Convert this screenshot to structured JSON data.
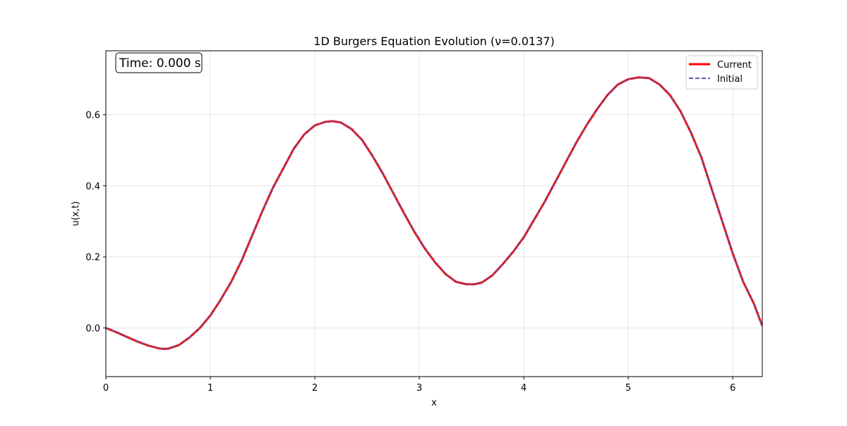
{
  "chart_data": {
    "type": "line",
    "title": "1D Burgers Equation Evolution (ν=0.0137)",
    "xlabel": "x",
    "ylabel": "u(x,t)",
    "xlim": [
      0,
      6.2832
    ],
    "ylim": [
      -0.137,
      0.78
    ],
    "grid": true,
    "legend_position": "top-right",
    "annotation": "Time: 0.000 s",
    "x_ticks": [
      0,
      1,
      2,
      3,
      4,
      5,
      6
    ],
    "x_tick_labels": [
      "0",
      "1",
      "2",
      "3",
      "4",
      "5",
      "6"
    ],
    "y_ticks": [
      0.0,
      0.2,
      0.4,
      0.6
    ],
    "y_tick_labels": [
      "0.0",
      "0.2",
      "0.4",
      "0.6"
    ],
    "x": [
      0,
      0.1,
      0.2,
      0.3,
      0.4,
      0.5,
      0.55,
      0.6,
      0.7,
      0.8,
      0.9,
      1.0,
      1.1,
      1.2,
      1.3,
      1.4,
      1.5,
      1.6,
      1.7,
      1.8,
      1.9,
      2.0,
      2.1,
      2.17,
      2.25,
      2.35,
      2.45,
      2.55,
      2.65,
      2.75,
      2.85,
      2.95,
      3.05,
      3.15,
      3.25,
      3.35,
      3.45,
      3.53,
      3.6,
      3.7,
      3.8,
      3.9,
      4.0,
      4.1,
      4.2,
      4.3,
      4.4,
      4.5,
      4.6,
      4.7,
      4.8,
      4.9,
      5.0,
      5.1,
      5.2,
      5.3,
      5.4,
      5.5,
      5.6,
      5.7,
      5.8,
      5.9,
      6.0,
      6.1,
      6.2,
      6.2832
    ],
    "series": [
      {
        "name": "Current",
        "color": "#ff0000",
        "style": "solid",
        "values": [
          0.0,
          -0.012,
          -0.025,
          -0.038,
          -0.049,
          -0.057,
          -0.059,
          -0.058,
          -0.048,
          -0.027,
          0.0,
          0.035,
          0.08,
          0.13,
          0.19,
          0.26,
          0.33,
          0.395,
          0.45,
          0.505,
          0.545,
          0.57,
          0.58,
          0.582,
          0.578,
          0.56,
          0.53,
          0.485,
          0.435,
          0.38,
          0.325,
          0.272,
          0.225,
          0.185,
          0.152,
          0.13,
          0.123,
          0.123,
          0.128,
          0.148,
          0.18,
          0.215,
          0.255,
          0.305,
          0.355,
          0.41,
          0.465,
          0.52,
          0.57,
          0.615,
          0.655,
          0.685,
          0.7,
          0.705,
          0.703,
          0.685,
          0.655,
          0.61,
          0.55,
          0.48,
          0.39,
          0.3,
          0.21,
          0.13,
          0.07,
          0.006
        ]
      },
      {
        "name": "Initial",
        "color": "#5b5ba8",
        "style": "dashed",
        "values": [
          0.0,
          -0.012,
          -0.025,
          -0.038,
          -0.049,
          -0.057,
          -0.059,
          -0.058,
          -0.048,
          -0.027,
          0.0,
          0.035,
          0.08,
          0.13,
          0.19,
          0.26,
          0.33,
          0.395,
          0.45,
          0.505,
          0.545,
          0.57,
          0.58,
          0.582,
          0.578,
          0.56,
          0.53,
          0.485,
          0.435,
          0.38,
          0.325,
          0.272,
          0.225,
          0.185,
          0.152,
          0.13,
          0.123,
          0.123,
          0.128,
          0.148,
          0.18,
          0.215,
          0.255,
          0.305,
          0.355,
          0.41,
          0.465,
          0.52,
          0.57,
          0.615,
          0.655,
          0.685,
          0.7,
          0.705,
          0.703,
          0.685,
          0.655,
          0.61,
          0.55,
          0.48,
          0.39,
          0.3,
          0.21,
          0.13,
          0.07,
          0.006
        ]
      }
    ]
  }
}
